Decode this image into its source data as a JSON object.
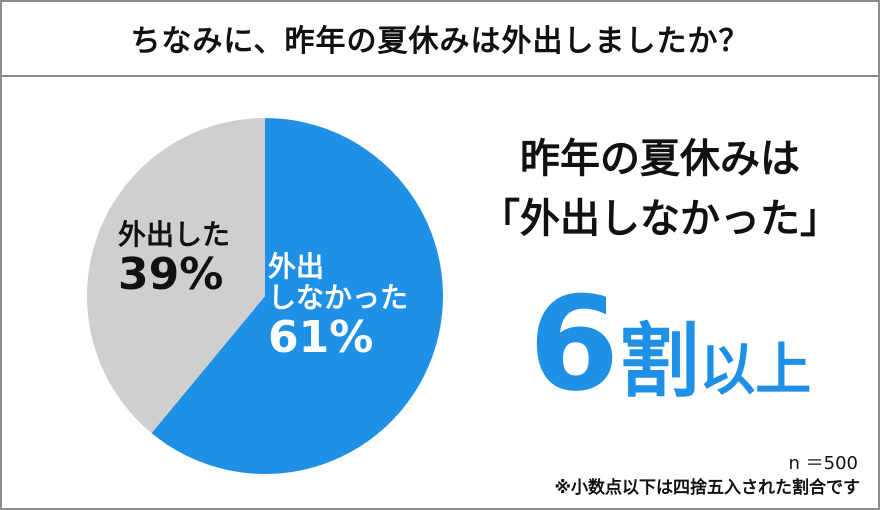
{
  "title": "ちなみに、昨年の夏休みは外出しましたか？",
  "headline": {
    "line1": "昨年の夏休みは",
    "line2": "「外出しなかった」",
    "big_number": "6",
    "big_unit": "割",
    "big_suffix": "以上"
  },
  "sample_size": "n ＝500",
  "footnote": "※小数点以下は四捨五入された割合です",
  "colors": {
    "accent": "#1e90e6",
    "gray": "#cfcfcf",
    "text": "#111111"
  },
  "chart_data": {
    "type": "pie",
    "title": "",
    "slices": [
      {
        "label": "外出しなかった",
        "label_lines": [
          "外出",
          "しなかった"
        ],
        "value": 61,
        "value_text": "61%",
        "color": "#1e90e6"
      },
      {
        "label": "外出した",
        "label_lines": [
          "外出した"
        ],
        "value": 39,
        "value_text": "39%",
        "color": "#cfcfcf"
      }
    ]
  }
}
